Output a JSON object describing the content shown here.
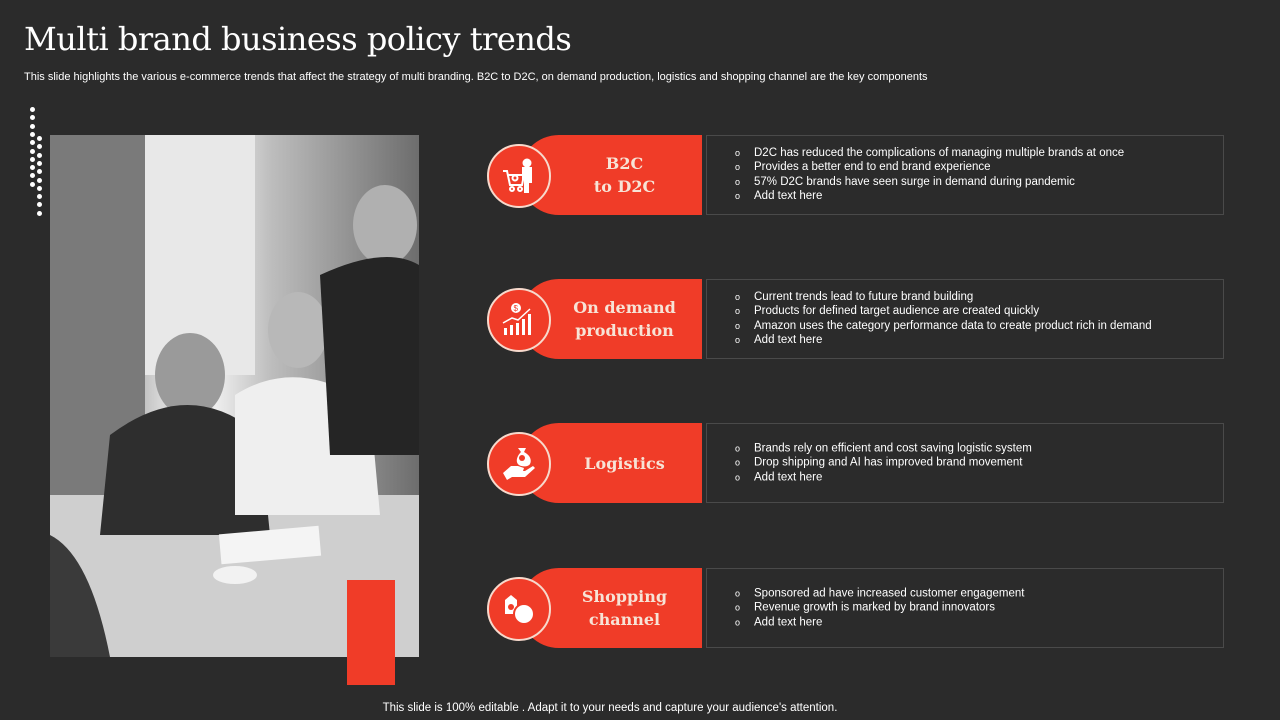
{
  "title": "Multi brand business policy trends",
  "subtitle": "This slide highlights the various e-commerce trends that affect the strategy of multi branding. B2C to D2C, on demand production, logistics and  shopping channel are the key components",
  "colors": {
    "background": "#2b2b2b",
    "accent": "#f03c28",
    "label_text": "#f7e3d6"
  },
  "rows": [
    {
      "label": "B2C\nto D2C",
      "icon": "shopping-cart-person-icon",
      "bullets": [
        "D2C has reduced the complications of managing multiple brands at once",
        "Provides a better end to  end brand experience",
        "57% D2C brands have seen surge in demand during pandemic",
        "Add text here"
      ]
    },
    {
      "label": "On demand\nproduction",
      "icon": "growth-chart-dollar-icon",
      "bullets": [
        "Current trends lead to future brand building",
        "Products for defined target audience are created quickly",
        "Amazon uses the category performance data to create product rich in demand",
        "Add text here"
      ]
    },
    {
      "label": "Logistics",
      "icon": "money-bag-hand-icon",
      "bullets": [
        "Brands rely on efficient and cost saving logistic system",
        "Drop shipping and AI has improved brand movement",
        "Add text here"
      ]
    },
    {
      "label": "Shopping\nchannel",
      "icon": "price-tag-coin-icon",
      "bullets": [
        "Sponsored ad have increased customer engagement",
        "Revenue growth is marked by brand innovators",
        "Add text here"
      ]
    }
  ],
  "footer": "This slide is 100% editable . Adapt it to your needs and capture your audience's attention."
}
